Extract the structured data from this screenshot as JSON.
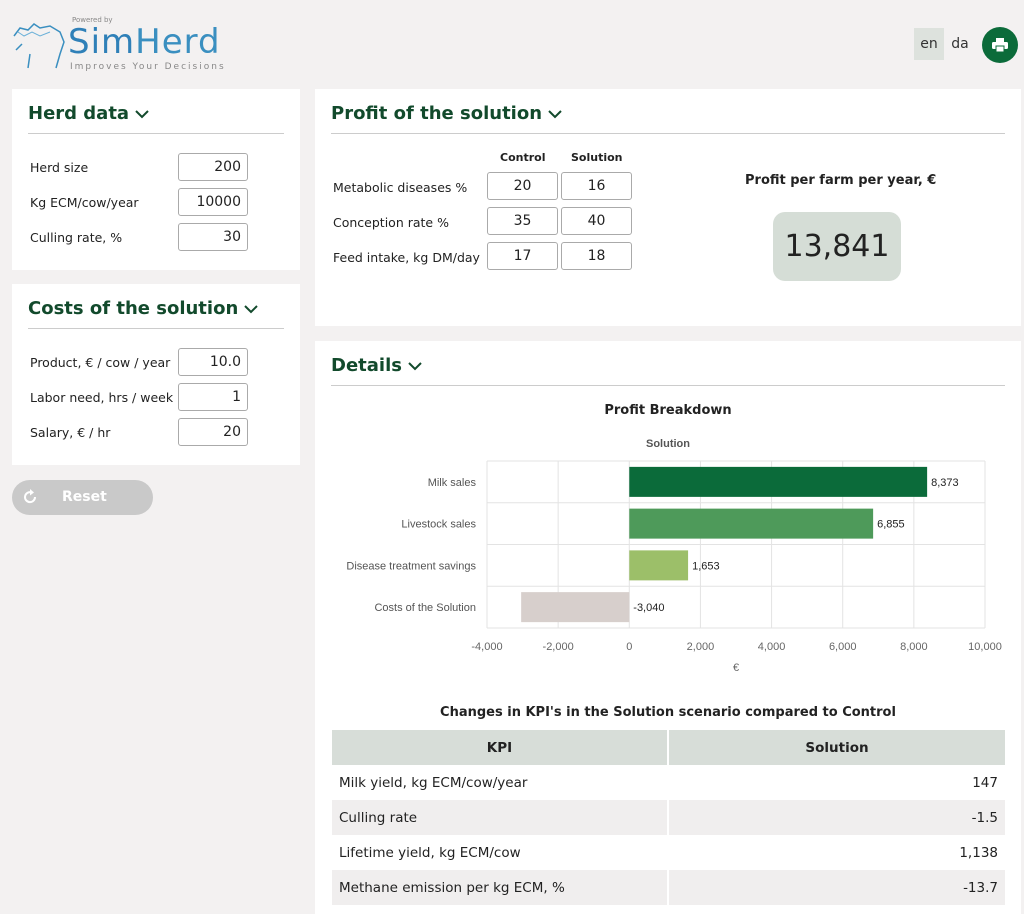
{
  "header": {
    "logo_powered": "Powered by",
    "logo_sim": "Sim",
    "logo_herd": "Herd",
    "logo_tagline": "Improves Your Decisions",
    "lang_en": "en",
    "lang_da": "da",
    "print_icon": "print-icon"
  },
  "herd": {
    "title": "Herd data",
    "fields": [
      {
        "label": "Herd size",
        "value": "200"
      },
      {
        "label": "Kg ECM/cow/year",
        "value": "10000"
      },
      {
        "label": "Culling rate, %",
        "value": "30"
      }
    ]
  },
  "costs": {
    "title": "Costs of the solution",
    "fields": [
      {
        "label": "Product, € / cow / year",
        "value": "10.0"
      },
      {
        "label": "Labor need, hrs / week",
        "value": "1"
      },
      {
        "label": "Salary, € / hr",
        "value": "20"
      }
    ]
  },
  "reset": {
    "label": "Reset"
  },
  "profit": {
    "title": "Profit of the solution",
    "col_control": "Control",
    "col_solution": "Solution",
    "rows": [
      {
        "label": "Metabolic diseases %",
        "control": "20",
        "solution": "16"
      },
      {
        "label": "Conception rate %",
        "control": "35",
        "solution": "40"
      },
      {
        "label": "Feed intake, kg DM/day",
        "control": "17",
        "solution": "18"
      }
    ],
    "result_label": "Profit per farm per year, €",
    "result_value": "13,841"
  },
  "details": {
    "title": "Details"
  },
  "chart_data": {
    "type": "bar",
    "orientation": "horizontal",
    "title": "Profit Breakdown",
    "subtitle": "Solution",
    "xlabel": "€",
    "categories": [
      "Milk sales",
      "Livestock sales",
      "Disease treatment savings",
      "Costs of the Solution"
    ],
    "values": [
      8373,
      6855,
      1653,
      -3040
    ],
    "value_labels": [
      "8,373",
      "6,855",
      "1,653",
      "-3,040"
    ],
    "colors": [
      "#0b6b3a",
      "#4e9a5a",
      "#9cbf69",
      "#d7cfcc"
    ],
    "xlim": [
      -4000,
      10000
    ],
    "xticks": [
      -4000,
      -2000,
      0,
      2000,
      4000,
      6000,
      8000,
      10000
    ],
    "xtick_labels": [
      "-4,000",
      "-2,000",
      "0",
      "2,000",
      "4,000",
      "6,000",
      "8,000",
      "10,000"
    ],
    "grid": true
  },
  "kpi": {
    "title": "Changes in KPI's in the Solution scenario compared to Control",
    "columns": [
      "KPI",
      "Solution"
    ],
    "rows": [
      {
        "kpi": "Milk yield, kg ECM/cow/year",
        "value": "147"
      },
      {
        "kpi": "Culling rate",
        "value": "-1.5"
      },
      {
        "kpi": "Lifetime yield, kg ECM/cow",
        "value": "1,138"
      },
      {
        "kpi": "Methane emission per kg ECM, %",
        "value": "-13.7"
      }
    ]
  }
}
